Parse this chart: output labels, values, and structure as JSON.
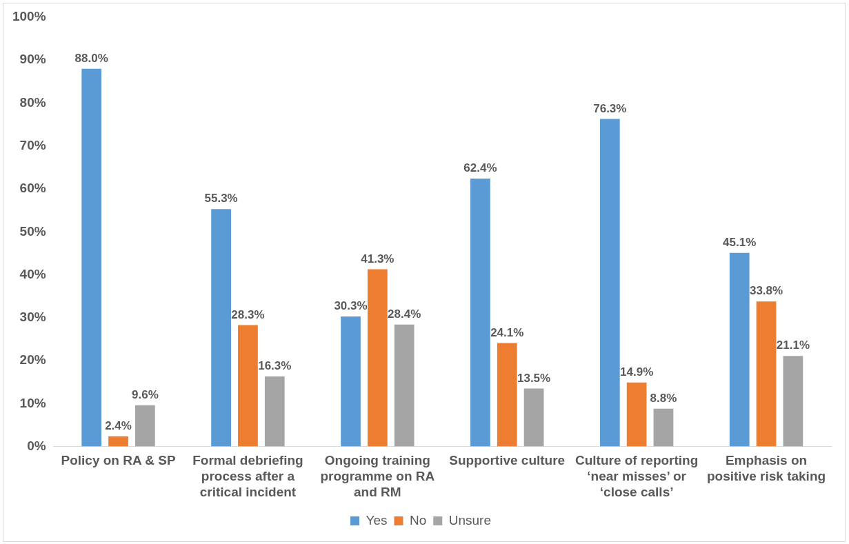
{
  "chart_data": {
    "type": "bar",
    "categories": [
      "Policy on RA & SP",
      "Formal debriefing process after a critical incident",
      "Ongoing training programme on RA and RM",
      "Supportive culture",
      "Culture of reporting ‘near misses’ or ‘close calls’",
      "Emphasis on positive risk taking"
    ],
    "series": [
      {
        "name": "Yes",
        "color": "#5b9bd5",
        "values": [
          88.0,
          55.3,
          30.3,
          62.4,
          76.3,
          45.1
        ],
        "value_labels": [
          "88.0%",
          "55.3%",
          "30.3%",
          "62.4%",
          "76.3%",
          "45.1%"
        ]
      },
      {
        "name": "No",
        "color": "#ed7d31",
        "values": [
          2.4,
          28.3,
          41.3,
          24.1,
          14.9,
          33.8
        ],
        "value_labels": [
          "2.4%",
          "28.3%",
          "41.3%",
          "24.1%",
          "14.9%",
          "33.8%"
        ]
      },
      {
        "name": "Unsure",
        "color": "#a5a5a5",
        "values": [
          9.6,
          16.3,
          28.4,
          13.5,
          8.8,
          21.1
        ],
        "value_labels": [
          "9.6%",
          "16.3%",
          "28.4%",
          "13.5%",
          "8.8%",
          "21.1%"
        ]
      }
    ],
    "ylim": [
      0,
      100
    ],
    "yticks": [
      {
        "value": 0,
        "label": "0%"
      },
      {
        "value": 10,
        "label": "10%"
      },
      {
        "value": 20,
        "label": "20%"
      },
      {
        "value": 30,
        "label": "30%"
      },
      {
        "value": 40,
        "label": "40%"
      },
      {
        "value": 50,
        "label": "50%"
      },
      {
        "value": 60,
        "label": "60%"
      },
      {
        "value": 70,
        "label": "70%"
      },
      {
        "value": 80,
        "label": "80%"
      },
      {
        "value": 90,
        "label": "90%"
      },
      {
        "value": 100,
        "label": "100%"
      }
    ],
    "grid": false,
    "legend": "bottom"
  }
}
